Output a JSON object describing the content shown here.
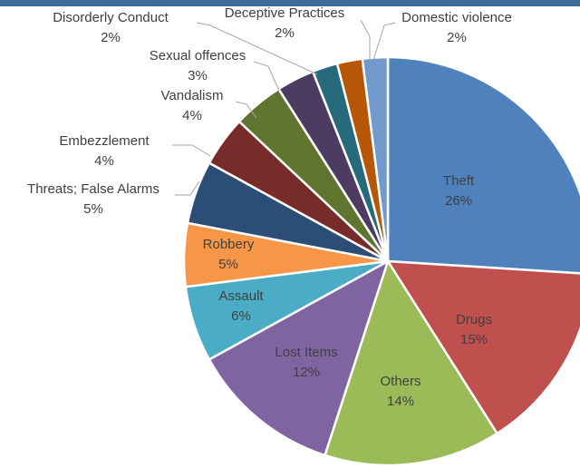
{
  "chart_data": {
    "type": "pie",
    "title": "",
    "categories": [
      "Theft",
      "Drugs",
      "Others",
      "Lost Items",
      "Assault",
      "Robbery",
      "Threats; False Alarms",
      "Embezzlement",
      "Vandalism",
      "Sexual offences",
      "Disorderly Conduct",
      "Deceptive Practices",
      "Domestic violence"
    ],
    "values": [
      26,
      15,
      14,
      12,
      6,
      5,
      5,
      4,
      4,
      3,
      2,
      2,
      2
    ],
    "percent_labels": [
      "26%",
      "15%",
      "14%",
      "12%",
      "6%",
      "5%",
      "5%",
      "4%",
      "4%",
      "3%",
      "2%",
      "2%",
      "2%"
    ],
    "colors": [
      "#4f81bd",
      "#c0504d",
      "#9bbb59",
      "#8064a2",
      "#4bacc6",
      "#f79646",
      "#2c4d75",
      "#772c2a",
      "#5f7530",
      "#4d3b62",
      "#276a7c",
      "#b65708",
      "#729aca"
    ],
    "label_placement": [
      "inside",
      "inside",
      "inside",
      "inside",
      "inside",
      "inside",
      "outside",
      "outside",
      "outside",
      "outside",
      "outside",
      "outside",
      "outside"
    ],
    "start_angle_deg": 0,
    "direction": "clockwise",
    "legend": "none"
  }
}
